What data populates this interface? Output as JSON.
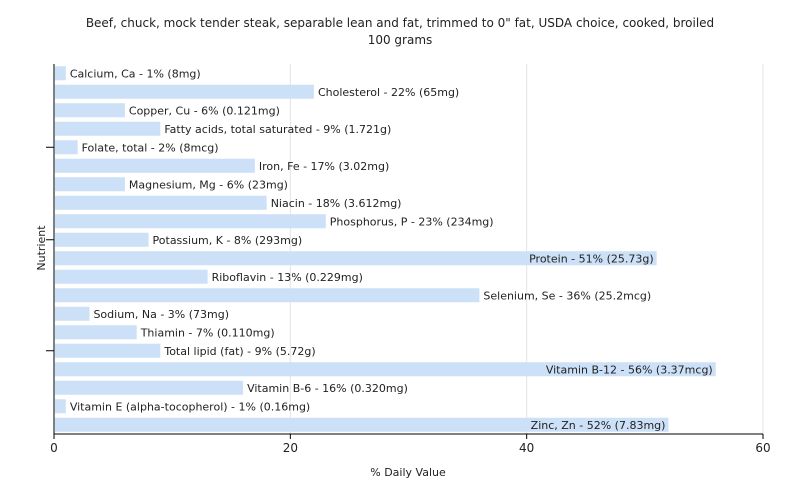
{
  "chart_data": {
    "type": "bar",
    "orientation": "horizontal",
    "title": "Beef, chuck, mock tender steak, separable lean and fat, trimmed to 0\" fat, USDA choice, cooked, broiled",
    "subtitle": "100 grams",
    "xlabel": "% Daily Value",
    "ylabel": "Nutrient",
    "xlim": [
      0,
      60
    ],
    "xticks": [
      0,
      20,
      40,
      60
    ],
    "grid": true,
    "bar_color": "#cce0f7",
    "categories": [
      "Calcium, Ca",
      "Cholesterol",
      "Copper, Cu",
      "Fatty acids, total saturated",
      "Folate, total",
      "Iron, Fe",
      "Magnesium, Mg",
      "Niacin",
      "Phosphorus, P",
      "Potassium, K",
      "Protein",
      "Riboflavin",
      "Selenium, Se",
      "Sodium, Na",
      "Thiamin",
      "Total lipid (fat)",
      "Vitamin B-12",
      "Vitamin B-6",
      "Vitamin E (alpha-tocopherol)",
      "Zinc, Zn"
    ],
    "values": [
      1,
      22,
      6,
      9,
      2,
      17,
      6,
      18,
      23,
      8,
      51,
      13,
      36,
      3,
      7,
      9,
      56,
      16,
      1,
      52
    ],
    "labels": [
      "Calcium, Ca - 1% (8mg)",
      "Cholesterol - 22% (65mg)",
      "Copper, Cu - 6% (0.121mg)",
      "Fatty acids, total saturated - 9% (1.721g)",
      "Folate, total - 2% (8mcg)",
      "Iron, Fe - 17% (3.02mg)",
      "Magnesium, Mg - 6% (23mg)",
      "Niacin - 18% (3.612mg)",
      "Phosphorus, P - 23% (234mg)",
      "Potassium, K - 8% (293mg)",
      "Protein - 51% (25.73g)",
      "Riboflavin - 13% (0.229mg)",
      "Selenium, Se - 36% (25.2mcg)",
      "Sodium, Na - 3% (73mg)",
      "Thiamin - 7% (0.110mg)",
      "Total lipid (fat) - 9% (5.72g)",
      "Vitamin B-12 - 56% (3.37mcg)",
      "Vitamin B-6 - 16% (0.320mg)",
      "Vitamin E (alpha-tocopherol) - 1% (0.16mg)",
      "Zinc, Zn - 52% (7.83mg)"
    ]
  }
}
